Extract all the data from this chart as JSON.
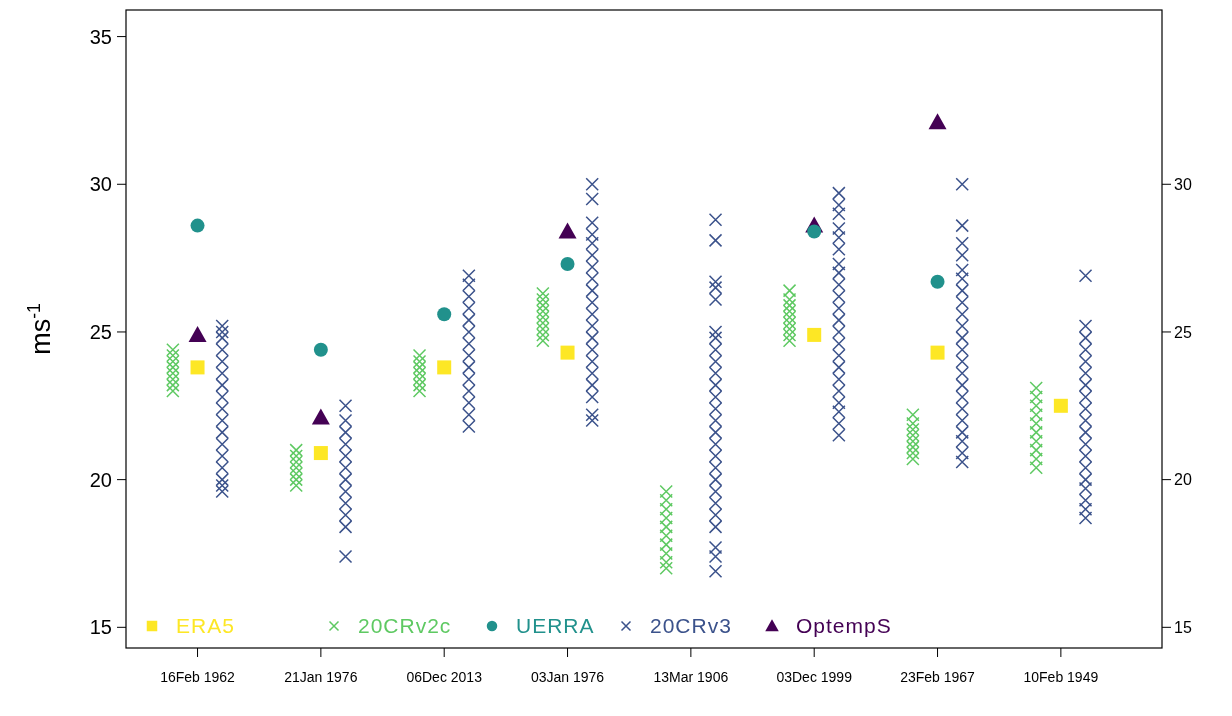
{
  "chart_data": {
    "type": "scatter",
    "ylabel": "ms$^{-1}$",
    "categories": [
      "16Feb 1962",
      "21Jan 1976",
      "06Dec 2013",
      "03Jan 1976",
      "13Mar 1906",
      "03Dec 1999",
      "23Feb 1967",
      "10Feb 1949"
    ],
    "ylim": [
      14.3,
      35.9
    ],
    "yticks": [
      15,
      20,
      25,
      30,
      35
    ],
    "y2lim": [
      14.3,
      35.9
    ],
    "y2ticks": [
      15,
      20,
      25,
      30
    ],
    "grid": false,
    "legend": "bottom left",
    "series": [
      {
        "name": "ERA5",
        "color": "#fde725",
        "marker": "square",
        "x": [
          "16Feb 1962",
          "21Jan 1976",
          "06Dec 2013",
          "03Jan 1976",
          "03Dec 1999",
          "23Feb 1967",
          "10Feb 1949"
        ],
        "values": [
          23.8,
          20.9,
          23.8,
          24.3,
          24.9,
          24.3,
          22.5
        ]
      },
      {
        "name": "20CRv2c",
        "color": "#5ec962",
        "marker": "cross",
        "x": [
          "16Feb 1962",
          "16Feb 1962",
          "16Feb 1962",
          "16Feb 1962",
          "16Feb 1962",
          "16Feb 1962",
          "16Feb 1962",
          "16Feb 1962",
          "21Jan 1976",
          "21Jan 1976",
          "21Jan 1976",
          "21Jan 1976",
          "21Jan 1976",
          "21Jan 1976",
          "21Jan 1976",
          "06Dec 2013",
          "06Dec 2013",
          "06Dec 2013",
          "06Dec 2013",
          "06Dec 2013",
          "06Dec 2013",
          "06Dec 2013",
          "03Jan 1976",
          "03Jan 1976",
          "03Jan 1976",
          "03Jan 1976",
          "03Jan 1976",
          "03Jan 1976",
          "03Jan 1976",
          "03Jan 1976",
          "03Jan 1976",
          "13Mar 1906",
          "13Mar 1906",
          "13Mar 1906",
          "13Mar 1906",
          "13Mar 1906",
          "13Mar 1906",
          "13Mar 1906",
          "13Mar 1906",
          "13Mar 1906",
          "13Mar 1906",
          "03Dec 1999",
          "03Dec 1999",
          "03Dec 1999",
          "03Dec 1999",
          "03Dec 1999",
          "03Dec 1999",
          "03Dec 1999",
          "03Dec 1999",
          "03Dec 1999",
          "23Feb 1967",
          "23Feb 1967",
          "23Feb 1967",
          "23Feb 1967",
          "23Feb 1967",
          "23Feb 1967",
          "23Feb 1967",
          "23Feb 1967",
          "10Feb 1949",
          "10Feb 1949",
          "10Feb 1949",
          "10Feb 1949",
          "10Feb 1949",
          "10Feb 1949",
          "10Feb 1949",
          "10Feb 1949",
          "10Feb 1949",
          "10Feb 1949"
        ],
        "values": [
          23.0,
          23.2,
          23.4,
          23.6,
          23.8,
          24.0,
          24.2,
          24.4,
          19.8,
          20.0,
          20.2,
          20.4,
          20.6,
          20.8,
          21.0,
          23.0,
          23.2,
          23.4,
          23.6,
          23.8,
          24.0,
          24.2,
          24.7,
          24.9,
          25.1,
          25.3,
          25.5,
          25.7,
          25.9,
          26.1,
          26.3,
          17.0,
          17.2,
          17.5,
          17.8,
          18.1,
          18.4,
          18.7,
          19.0,
          19.3,
          19.6,
          24.7,
          24.9,
          25.1,
          25.3,
          25.5,
          25.7,
          25.9,
          26.1,
          26.4,
          20.7,
          20.9,
          21.1,
          21.3,
          21.5,
          21.7,
          21.9,
          22.2,
          20.4,
          20.7,
          21.0,
          21.3,
          21.6,
          21.9,
          22.2,
          22.5,
          22.8,
          23.1
        ]
      },
      {
        "name": "UERRA",
        "color": "#21918c",
        "marker": "circle",
        "x": [
          "16Feb 1962",
          "21Jan 1976",
          "06Dec 2013",
          "03Jan 1976",
          "03Dec 1999",
          "23Feb 1967"
        ],
        "values": [
          28.6,
          24.4,
          25.6,
          27.3,
          28.4,
          26.7
        ]
      },
      {
        "name": "20CRv3",
        "color": "#3b528b",
        "marker": "cross",
        "x": [
          "16Feb 1962",
          "16Feb 1962",
          "16Feb 1962",
          "16Feb 1962",
          "16Feb 1962",
          "16Feb 1962",
          "16Feb 1962",
          "16Feb 1962",
          "16Feb 1962",
          "16Feb 1962",
          "16Feb 1962",
          "16Feb 1962",
          "16Feb 1962",
          "16Feb 1962",
          "16Feb 1962",
          "16Feb 1962",
          "16Feb 1962",
          "21Jan 1976",
          "21Jan 1976",
          "21Jan 1976",
          "21Jan 1976",
          "21Jan 1976",
          "21Jan 1976",
          "21Jan 1976",
          "21Jan 1976",
          "21Jan 1976",
          "21Jan 1976",
          "21Jan 1976",
          "21Jan 1976",
          "06Dec 2013",
          "06Dec 2013",
          "06Dec 2013",
          "06Dec 2013",
          "06Dec 2013",
          "06Dec 2013",
          "06Dec 2013",
          "06Dec 2013",
          "06Dec 2013",
          "06Dec 2013",
          "06Dec 2013",
          "06Dec 2013",
          "06Dec 2013",
          "06Dec 2013",
          "03Jan 1976",
          "03Jan 1976",
          "03Jan 1976",
          "03Jan 1976",
          "03Jan 1976",
          "03Jan 1976",
          "03Jan 1976",
          "03Jan 1976",
          "03Jan 1976",
          "03Jan 1976",
          "03Jan 1976",
          "03Jan 1976",
          "03Jan 1976",
          "03Jan 1976",
          "03Jan 1976",
          "03Jan 1976",
          "03Jan 1976",
          "03Jan 1976",
          "03Jan 1976",
          "03Jan 1976",
          "13Mar 1906",
          "13Mar 1906",
          "13Mar 1906",
          "13Mar 1906",
          "13Mar 1906",
          "13Mar 1906",
          "13Mar 1906",
          "13Mar 1906",
          "13Mar 1906",
          "13Mar 1906",
          "13Mar 1906",
          "13Mar 1906",
          "13Mar 1906",
          "13Mar 1906",
          "13Mar 1906",
          "13Mar 1906",
          "13Mar 1906",
          "13Mar 1906",
          "13Mar 1906",
          "13Mar 1906",
          "13Mar 1906",
          "13Mar 1906",
          "13Mar 1906",
          "13Mar 1906",
          "13Mar 1906",
          "13Mar 1906",
          "03Dec 1999",
          "03Dec 1999",
          "03Dec 1999",
          "03Dec 1999",
          "03Dec 1999",
          "03Dec 1999",
          "03Dec 1999",
          "03Dec 1999",
          "03Dec 1999",
          "03Dec 1999",
          "03Dec 1999",
          "03Dec 1999",
          "03Dec 1999",
          "03Dec 1999",
          "03Dec 1999",
          "03Dec 1999",
          "03Dec 1999",
          "03Dec 1999",
          "03Dec 1999",
          "03Dec 1999",
          "03Dec 1999",
          "03Dec 1999",
          "23Feb 1967",
          "23Feb 1967",
          "23Feb 1967",
          "23Feb 1967",
          "23Feb 1967",
          "23Feb 1967",
          "23Feb 1967",
          "23Feb 1967",
          "23Feb 1967",
          "23Feb 1967",
          "23Feb 1967",
          "23Feb 1967",
          "23Feb 1967",
          "23Feb 1967",
          "23Feb 1967",
          "23Feb 1967",
          "23Feb 1967",
          "23Feb 1967",
          "23Feb 1967",
          "23Feb 1967",
          "23Feb 1967",
          "23Feb 1967",
          "10Feb 1949",
          "10Feb 1949",
          "10Feb 1949",
          "10Feb 1949",
          "10Feb 1949",
          "10Feb 1949",
          "10Feb 1949",
          "10Feb 1949",
          "10Feb 1949",
          "10Feb 1949",
          "10Feb 1949",
          "10Feb 1949",
          "10Feb 1949",
          "10Feb 1949",
          "10Feb 1949",
          "10Feb 1949",
          "10Feb 1949",
          "10Feb 1949",
          "10Feb 1949"
        ],
        "values": [
          19.6,
          19.8,
          20.0,
          20.4,
          20.8,
          21.2,
          21.6,
          22.0,
          22.4,
          22.8,
          23.2,
          23.6,
          24.0,
          24.4,
          24.8,
          25.0,
          25.2,
          17.4,
          18.4,
          18.8,
          19.2,
          19.6,
          20.0,
          20.4,
          20.8,
          21.2,
          21.6,
          22.0,
          22.5,
          21.8,
          22.2,
          22.6,
          23.0,
          23.4,
          23.8,
          24.2,
          24.6,
          25.0,
          25.4,
          25.8,
          26.2,
          26.6,
          26.9,
          22.0,
          22.2,
          22.8,
          23.2,
          23.6,
          24.0,
          24.4,
          24.8,
          25.2,
          25.6,
          26.0,
          26.4,
          26.8,
          27.2,
          27.6,
          28.0,
          28.3,
          28.7,
          29.5,
          30.0,
          16.9,
          17.4,
          17.7,
          18.4,
          18.8,
          19.2,
          19.6,
          20.0,
          20.4,
          20.8,
          21.2,
          21.6,
          22.0,
          22.4,
          22.8,
          23.2,
          23.6,
          24.0,
          24.4,
          24.8,
          25.0,
          26.1,
          26.5,
          26.7,
          28.1,
          28.8,
          21.5,
          21.9,
          22.3,
          22.6,
          23.0,
          23.4,
          23.8,
          24.2,
          24.6,
          25.0,
          25.4,
          25.8,
          26.2,
          26.6,
          27.0,
          27.3,
          27.8,
          28.2,
          28.5,
          29.0,
          29.3,
          29.7,
          20.6,
          20.9,
          21.3,
          21.6,
          22.0,
          22.4,
          22.8,
          23.2,
          23.6,
          24.0,
          24.4,
          24.8,
          25.2,
          25.6,
          26.0,
          26.4,
          26.8,
          27.1,
          27.6,
          28.0,
          28.6,
          30.0,
          18.7,
          19.0,
          19.3,
          19.7,
          20.0,
          20.4,
          20.8,
          21.2,
          21.6,
          22.0,
          22.4,
          22.8,
          23.2,
          23.6,
          24.0,
          24.4,
          24.8,
          25.2,
          26.9
        ]
      },
      {
        "name": "OptempS",
        "color": "#440154",
        "marker": "triangle",
        "x": [
          "16Feb 1962",
          "21Jan 1976",
          "03Jan 1976",
          "03Dec 1999",
          "23Feb 1967"
        ],
        "values": [
          24.9,
          22.1,
          28.4,
          28.6,
          32.1
        ]
      }
    ]
  }
}
